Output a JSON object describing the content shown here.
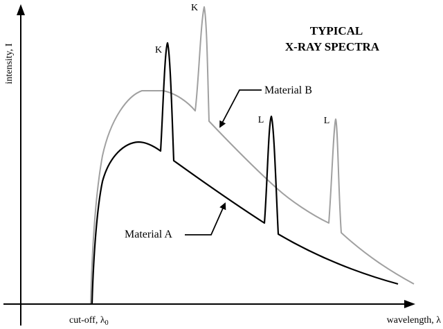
{
  "title": {
    "line1": "TYPICAL",
    "line2": "X-RAY SPECTRA"
  },
  "axes": {
    "y_label": "intensity, I",
    "x_label": "wavelength, λ",
    "cutoff_label": "cut-off, λ",
    "cutoff_subscript": "0"
  },
  "series": [
    {
      "name": "Material A",
      "color": "#000000",
      "peak_labels": [
        "K",
        "L"
      ]
    },
    {
      "name": "Material B",
      "color": "#a0a0a0",
      "peak_labels": [
        "K",
        "L"
      ]
    }
  ]
}
